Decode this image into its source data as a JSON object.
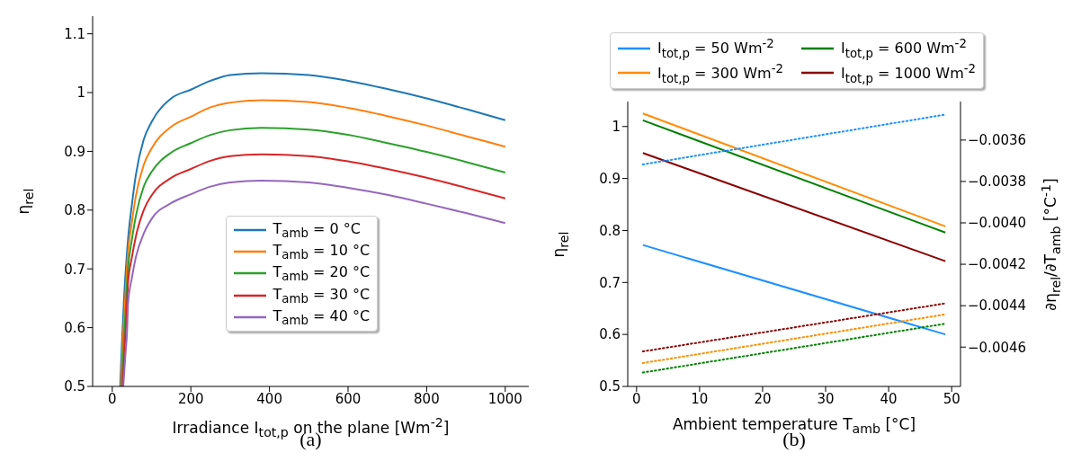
{
  "chart_data": [
    {
      "type": "line",
      "xlabel": "Irradiance I$_{tot,p}$ on the plane [Wm$^{-2}$]",
      "ylabel": "η$_{rel}$",
      "annotations": [
        "(a)"
      ],
      "xlim": [
        -50,
        1060
      ],
      "xticks": [
        0,
        200,
        400,
        600,
        800,
        1000
      ],
      "ylim": [
        0.5,
        1.13
      ],
      "yticks": [
        0.5,
        0.6,
        0.7,
        0.8,
        0.9,
        1.0,
        1.1
      ],
      "legend": "bottom",
      "grid": false,
      "series": [
        {
          "name": "T$_{amb}$ = 0 °C",
          "color": "#1f77b4",
          "x": [
            20,
            25,
            30,
            40,
            50,
            60,
            80,
            100,
            150,
            200,
            250,
            300,
            380,
            500,
            600,
            700,
            800,
            900,
            1000
          ],
          "values": [
            0.5,
            0.58,
            0.65,
            0.75,
            0.81,
            0.86,
            0.92,
            0.95,
            0.99,
            1.005,
            1.02,
            1.03,
            1.033,
            1.03,
            1.02,
            1.006,
            0.99,
            0.972,
            0.953
          ]
        },
        {
          "name": "T$_{amb}$ = 10 °C",
          "color": "#ff7f0e",
          "x": [
            22,
            27,
            32,
            40,
            50,
            60,
            80,
            100,
            150,
            200,
            250,
            300,
            380,
            500,
            600,
            700,
            800,
            900,
            1000
          ],
          "values": [
            0.5,
            0.58,
            0.64,
            0.728,
            0.78,
            0.824,
            0.877,
            0.905,
            0.942,
            0.959,
            0.975,
            0.983,
            0.987,
            0.984,
            0.974,
            0.96,
            0.944,
            0.926,
            0.908
          ]
        },
        {
          "name": "T$_{amb}$ = 20 °C",
          "color": "#2ca02c",
          "x": [
            24,
            29,
            34,
            40,
            50,
            60,
            80,
            100,
            150,
            200,
            250,
            300,
            380,
            500,
            600,
            700,
            800,
            900,
            1000
          ],
          "values": [
            0.5,
            0.57,
            0.63,
            0.7,
            0.75,
            0.79,
            0.84,
            0.865,
            0.898,
            0.914,
            0.928,
            0.936,
            0.94,
            0.937,
            0.928,
            0.914,
            0.899,
            0.882,
            0.864
          ]
        },
        {
          "name": "T$_{amb}$ = 30 °C",
          "color": "#d62728",
          "x": [
            26,
            31,
            36,
            40,
            50,
            60,
            80,
            100,
            150,
            200,
            250,
            300,
            380,
            500,
            600,
            700,
            800,
            900,
            1000
          ],
          "values": [
            0.5,
            0.56,
            0.62,
            0.675,
            0.72,
            0.755,
            0.8,
            0.825,
            0.855,
            0.87,
            0.884,
            0.892,
            0.895,
            0.892,
            0.883,
            0.87,
            0.855,
            0.838,
            0.82
          ]
        },
        {
          "name": "T$_{amb}$ = 40 °C",
          "color": "#9467bd",
          "x": [
            28,
            33,
            38,
            40,
            50,
            60,
            80,
            100,
            150,
            200,
            250,
            300,
            380,
            500,
            600,
            700,
            800,
            900,
            1000
          ],
          "values": [
            0.5,
            0.55,
            0.6,
            0.64,
            0.685,
            0.72,
            0.76,
            0.785,
            0.812,
            0.827,
            0.84,
            0.847,
            0.85,
            0.847,
            0.838,
            0.826,
            0.811,
            0.795,
            0.778
          ]
        }
      ]
    },
    {
      "type": "line",
      "xlabel": "Ambient temperature T$_{amb}$ [°C]",
      "ylabel": "η$_{rel}$",
      "y2label": "∂η$_{rel}$/∂T$_{amb}$ [°C$^{-1}$]",
      "annotations": [
        "(b)"
      ],
      "xlim": [
        -1.4,
        51.4
      ],
      "xticks": [
        0,
        10,
        20,
        30,
        40,
        50
      ],
      "ylim": [
        0.5,
        1.048
      ],
      "yticks": [
        0.5,
        0.6,
        0.7,
        0.8,
        0.9,
        1.0
      ],
      "y2lim": [
        -0.00479,
        -0.003414
      ],
      "y2ticks": [
        {
          "value": -0.0046,
          "label": "−0.0046"
        },
        {
          "value": -0.0044,
          "label": "−0.0044"
        },
        {
          "value": -0.0042,
          "label": "−0.0042"
        },
        {
          "value": -0.004,
          "label": "−0.0040"
        },
        {
          "value": -0.0038,
          "label": "−0.0038"
        },
        {
          "value": -0.0036,
          "label": "−0.0036"
        }
      ],
      "legend": "top",
      "grid": false,
      "series": [
        {
          "name": "I$_{tot,p}$ = 50 Wm$^{-2}$",
          "color": "#1e90ff",
          "x": [
            1,
            49
          ],
          "values": [
            0.772,
            0.6
          ]
        },
        {
          "name": "I$_{tot,p}$ = 300 Wm$^{-2}$",
          "color": "#ff8c00",
          "x": [
            1,
            49
          ],
          "values": [
            1.025,
            0.808
          ]
        },
        {
          "name": "I$_{tot,p}$ = 600 Wm$^{-2}$",
          "color": "#008000",
          "x": [
            1,
            49
          ],
          "values": [
            1.012,
            0.796
          ]
        },
        {
          "name": "I$_{tot,p}$ = 1000 Wm$^{-2}$",
          "color": "#8b0000",
          "x": [
            1,
            49
          ],
          "values": [
            0.949,
            0.741
          ]
        },
        {
          "color": "#1e90ff",
          "axis": "y2",
          "line_style": "dotted",
          "x": [
            1,
            49
          ],
          "values": [
            -0.003718,
            -0.003477
          ]
        },
        {
          "color": "#ff8c00",
          "axis": "y2",
          "line_style": "dotted",
          "x": [
            1,
            49
          ],
          "values": [
            -0.004677,
            -0.004442
          ]
        },
        {
          "color": "#008000",
          "axis": "y2",
          "line_style": "dotted",
          "x": [
            1,
            49
          ],
          "values": [
            -0.004723,
            -0.004487
          ]
        },
        {
          "color": "#8b0000",
          "axis": "y2",
          "line_style": "dotted",
          "x": [
            1,
            49
          ],
          "values": [
            -0.004621,
            -0.004389
          ]
        }
      ]
    }
  ]
}
